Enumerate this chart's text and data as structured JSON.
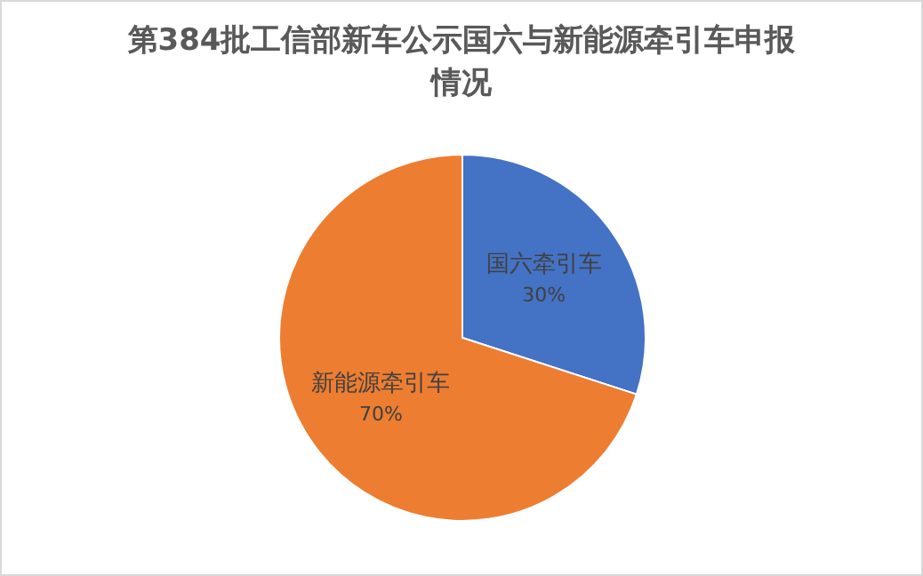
{
  "chart_data": {
    "type": "pie",
    "title": "第384批工信部新车公示国六与新能源牵引车申报情况",
    "categories": [
      "国六牵引车",
      "新能源牵引车"
    ],
    "values": [
      30,
      70
    ],
    "value_labels": [
      "30%",
      "70%"
    ],
    "colors": [
      "#4472c4",
      "#ed7d31"
    ]
  }
}
